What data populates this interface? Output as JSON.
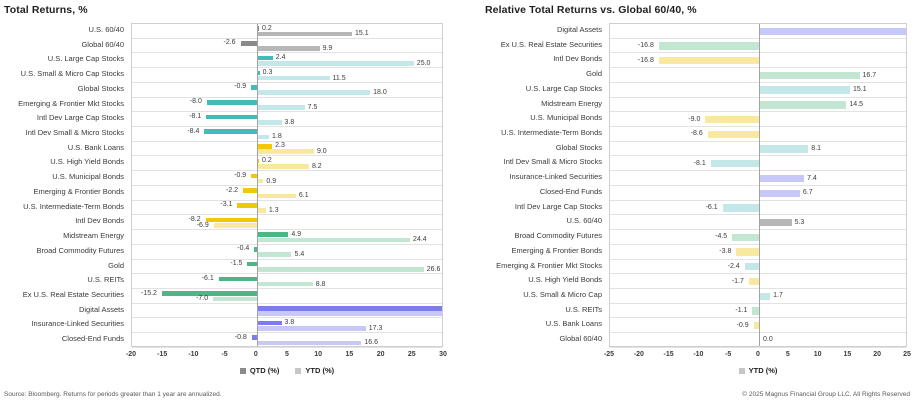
{
  "page": {
    "background": "#ffffff"
  },
  "palettes": {
    "gray": {
      "strong": "#8a8a8a",
      "light": "#b7b7b7"
    },
    "teal": {
      "strong": "#46b9b9",
      "light": "#c4e7e9"
    },
    "yellow": {
      "strong": "#f4c608",
      "light": "#f9e8a0"
    },
    "green": {
      "strong": "#4db687",
      "light": "#c2e6d1"
    },
    "purple": {
      "strong": "#7c7cea",
      "light": "#c7c7f8"
    }
  },
  "legend_swatches": {
    "qtd": "#8a8a8a",
    "ytd": "#c6c6c6"
  },
  "chart_data": [
    {
      "type": "bar",
      "orientation": "horizontal",
      "title": "Total Returns, %",
      "xlabel": "",
      "ylabel": "",
      "x_axis": {
        "min": -20,
        "max": 30,
        "step": 5
      },
      "grid": false,
      "legend_position": "bottom",
      "legend": [
        {
          "label": "QTD (%)",
          "color": "#8a8a8a"
        },
        {
          "label": "YTD (%)",
          "color": "#c6c6c6"
        }
      ],
      "series_names": [
        "QTD",
        "YTD"
      ],
      "source_note": "Source: Bloomberg. Returns for periods greater than 1 year are annualized.",
      "rows": [
        {
          "label": "U.S. 60/40",
          "palette": "gray",
          "qtd": 0.2,
          "ytd": 15.1
        },
        {
          "label": "Global 60/40",
          "palette": "gray",
          "qtd": -2.6,
          "ytd": 9.9
        },
        {
          "label": "U.S. Large Cap Stocks",
          "palette": "teal",
          "qtd": 2.4,
          "ytd": 25.0
        },
        {
          "label": "U.S. Small & Micro Cap Stocks",
          "palette": "teal",
          "qtd": 0.3,
          "ytd": 11.5
        },
        {
          "label": "Global Stocks",
          "palette": "teal",
          "qtd": -0.9,
          "ytd": 18.0
        },
        {
          "label": "Emerging & Frontier Mkt Stocks",
          "palette": "teal",
          "qtd": -8.0,
          "ytd": 7.5
        },
        {
          "label": "Intl Dev Large Cap Stocks",
          "palette": "teal",
          "qtd": -8.1,
          "ytd": 3.8
        },
        {
          "label": "Intl Dev Small & Micro Stocks",
          "palette": "teal",
          "qtd": -8.4,
          "ytd": 1.8
        },
        {
          "label": "U.S. Bank Loans",
          "palette": "yellow",
          "qtd": 2.3,
          "ytd": 9.0
        },
        {
          "label": "U.S. High Yield Bonds",
          "palette": "yellow",
          "qtd": 0.2,
          "ytd": 8.2
        },
        {
          "label": "U.S. Municipal Bonds",
          "palette": "yellow",
          "qtd": -0.9,
          "ytd": 0.9
        },
        {
          "label": "Emerging & Frontier Bonds",
          "palette": "yellow",
          "qtd": -2.2,
          "ytd": 6.1
        },
        {
          "label": "U.S. Intermediate-Term Bonds",
          "palette": "yellow",
          "qtd": -3.1,
          "ytd": 1.3
        },
        {
          "label": "Intl Dev Bonds",
          "palette": "yellow",
          "qtd": -8.2,
          "ytd": -6.9
        },
        {
          "label": "Midstream Energy",
          "palette": "green",
          "qtd": 4.9,
          "ytd": 24.4
        },
        {
          "label": "Broad Commodity Futures",
          "palette": "green",
          "qtd": -0.4,
          "ytd": 5.4
        },
        {
          "label": "Gold",
          "palette": "green",
          "qtd": -1.5,
          "ytd": 26.6
        },
        {
          "label": "U.S. REITs",
          "palette": "green",
          "qtd": -6.1,
          "ytd": 8.8
        },
        {
          "label": "Ex U.S. Real Estate Securities",
          "palette": "green",
          "qtd": -15.2,
          "ytd": -7.0
        },
        {
          "label": "Digital Assets",
          "palette": "purple",
          "qtd": null,
          "ytd": null,
          "clipped": true
        },
        {
          "label": "Insurance-Linked Securities",
          "palette": "purple",
          "qtd": 3.8,
          "ytd": 17.3
        },
        {
          "label": "Closed-End Funds",
          "palette": "purple",
          "qtd": -0.8,
          "ytd": 16.6
        }
      ]
    },
    {
      "type": "bar",
      "orientation": "horizontal",
      "title": "Relative Total Returns vs. Global 60/40, %",
      "xlabel": "",
      "ylabel": "",
      "x_axis": {
        "min": -25,
        "max": 25,
        "step": 5
      },
      "grid": false,
      "legend_position": "bottom",
      "legend": [
        {
          "label": "YTD (%)",
          "color": "#c6c6c6"
        }
      ],
      "series_names": [
        "YTD"
      ],
      "copyright": "© 2025 Magnus Financial Group LLC. All Rights Reserved",
      "rows": [
        {
          "label": "Digital Assets",
          "palette": "purple",
          "value": null,
          "clipped": true
        },
        {
          "label": "Ex U.S. Real Estate Securities",
          "palette": "green",
          "value": -16.8
        },
        {
          "label": "Intl Dev Bonds",
          "palette": "yellow",
          "value": -16.8
        },
        {
          "label": "Gold",
          "palette": "green",
          "value": 16.7
        },
        {
          "label": "U.S. Large Cap Stocks",
          "palette": "teal",
          "value": 15.1
        },
        {
          "label": "Midstream Energy",
          "palette": "green",
          "value": 14.5
        },
        {
          "label": "U.S. Municipal Bonds",
          "palette": "yellow",
          "value": -9.0
        },
        {
          "label": "U.S. Intermediate-Term Bonds",
          "palette": "yellow",
          "value": -8.6
        },
        {
          "label": "Global Stocks",
          "palette": "teal",
          "value": 8.1
        },
        {
          "label": "Intl Dev Small & Micro Stocks",
          "palette": "teal",
          "value": -8.1
        },
        {
          "label": "Insurance-Linked Securities",
          "palette": "purple",
          "value": 7.4
        },
        {
          "label": "Closed-End Funds",
          "palette": "purple",
          "value": 6.7
        },
        {
          "label": "Intl Dev Large Cap Stocks",
          "palette": "teal",
          "value": -6.1
        },
        {
          "label": "U.S. 60/40",
          "palette": "gray",
          "value": 5.3
        },
        {
          "label": "Broad Commodity Futures",
          "palette": "green",
          "value": -4.5
        },
        {
          "label": "Emerging & Frontier Bonds",
          "palette": "yellow",
          "value": -3.8
        },
        {
          "label": "Emerging & Frontier Mkt Stocks",
          "palette": "teal",
          "value": -2.4
        },
        {
          "label": "U.S. High Yield Bonds",
          "palette": "yellow",
          "value": -1.7
        },
        {
          "label": "U.S. Small & Micro Cap",
          "palette": "teal",
          "value": 1.7
        },
        {
          "label": "U.S. REITs",
          "palette": "green",
          "value": -1.1
        },
        {
          "label": "U.S. Bank Loans",
          "palette": "yellow",
          "value": -0.9
        },
        {
          "label": "Global 60/40",
          "palette": "gray",
          "value": 0.0
        }
      ]
    }
  ]
}
